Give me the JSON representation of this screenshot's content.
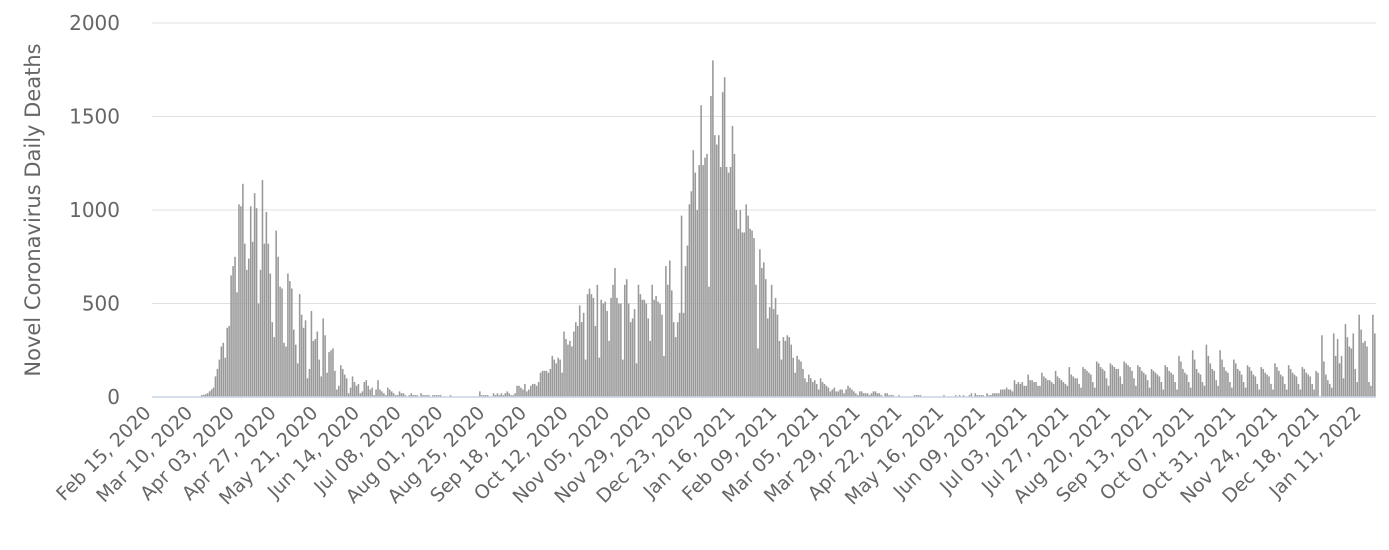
{
  "chart_data": {
    "type": "bar",
    "title": "",
    "xlabel": "",
    "ylabel": "Novel Coronavirus Daily Deaths",
    "ylim": [
      0,
      2000
    ],
    "yticks": [
      0,
      500,
      1000,
      1500,
      2000
    ],
    "ytick_labels": [
      "0",
      "500",
      "1000",
      "1500",
      "2000"
    ],
    "grid": true,
    "legend": "none",
    "bar_color": "#999999",
    "x_start": "Feb 15, 2020",
    "x_end": "Jan 30, 2022",
    "xtick_labels": [
      "Feb 15, 2020",
      "Mar 10, 2020",
      "Apr 03, 2020",
      "Apr 27, 2020",
      "May 21, 2020",
      "Jun 14, 2020",
      "Jul 08, 2020",
      "Aug 01, 2020",
      "Aug 25, 2020",
      "Sep 18, 2020",
      "Oct 12, 2020",
      "Nov 05, 2020",
      "Nov 29, 2020",
      "Dec 23, 2020",
      "Jan 16, 2021",
      "Feb 09, 2021",
      "Mar 05, 2021",
      "Mar 29, 2021",
      "Apr 22, 2021",
      "May 16, 2021",
      "Jun 09, 2021",
      "Jul 03, 2021",
      "Jul 27, 2021",
      "Aug 20, 2021",
      "Sep 13, 2021",
      "Oct 07, 2021",
      "Oct 31, 2021",
      "Nov 24, 2021",
      "Dec 18, 2021",
      "Jan 11, 2022"
    ],
    "series": [
      {
        "name": "",
        "values": [
          0,
          0,
          0,
          0,
          0,
          0,
          0,
          0,
          0,
          0,
          0,
          0,
          0,
          0,
          0,
          0,
          0,
          0,
          0,
          0,
          0,
          0,
          0,
          0,
          0,
          10,
          12,
          15,
          20,
          30,
          40,
          50,
          110,
          150,
          200,
          270,
          290,
          210,
          370,
          380,
          650,
          700,
          750,
          560,
          1030,
          1020,
          1140,
          820,
          680,
          740,
          1020,
          830,
          1090,
          1010,
          500,
          680,
          1160,
          820,
          990,
          820,
          660,
          400,
          320,
          890,
          750,
          590,
          580,
          290,
          270,
          660,
          620,
          580,
          360,
          280,
          180,
          550,
          440,
          370,
          410,
          100,
          150,
          460,
          300,
          310,
          350,
          200,
          110,
          420,
          330,
          130,
          240,
          250,
          260,
          140,
          40,
          60,
          170,
          150,
          120,
          100,
          20,
          50,
          110,
          80,
          60,
          70,
          20,
          30,
          80,
          90,
          60,
          40,
          50,
          10,
          40,
          90,
          40,
          30,
          20,
          10,
          50,
          40,
          30,
          20,
          10,
          10,
          30,
          20,
          20,
          10,
          0,
          10,
          20,
          10,
          10,
          10,
          0,
          20,
          10,
          10,
          10,
          10,
          0,
          10,
          10,
          10,
          10,
          10,
          0,
          0,
          0,
          0,
          10,
          0,
          0,
          0,
          0,
          0,
          0,
          0,
          0,
          0,
          0,
          0,
          0,
          0,
          0,
          30,
          10,
          10,
          10,
          10,
          0,
          0,
          20,
          10,
          20,
          10,
          20,
          10,
          20,
          30,
          20,
          10,
          10,
          20,
          60,
          60,
          50,
          40,
          70,
          30,
          40,
          60,
          70,
          70,
          60,
          80,
          130,
          140,
          140,
          140,
          130,
          150,
          220,
          200,
          180,
          210,
          200,
          130,
          350,
          310,
          280,
          300,
          270,
          350,
          400,
          380,
          490,
          400,
          450,
          200,
          550,
          580,
          550,
          530,
          380,
          600,
          210,
          520,
          500,
          510,
          460,
          300,
          530,
          600,
          690,
          530,
          500,
          500,
          200,
          600,
          630,
          500,
          400,
          420,
          470,
          180,
          600,
          550,
          520,
          520,
          500,
          420,
          300,
          600,
          520,
          540,
          510,
          500,
          440,
          220,
          700,
          600,
          730,
          570,
          400,
          320,
          400,
          450,
          970,
          450,
          700,
          810,
          1030,
          1100,
          1320,
          1200,
          1000,
          1240,
          1560,
          1240,
          1280,
          1300,
          590,
          1610,
          1800,
          1400,
          1350,
          1400,
          1230,
          1630,
          1710,
          1230,
          1200,
          1230,
          1450,
          1300,
          1000,
          900,
          1000,
          880,
          880,
          1030,
          970,
          900,
          890,
          850,
          600,
          260,
          790,
          690,
          720,
          630,
          420,
          480,
          600,
          470,
          530,
          440,
          300,
          200,
          320,
          300,
          330,
          320,
          280,
          210,
          130,
          220,
          200,
          190,
          150,
          100,
          80,
          120,
          100,
          80,
          90,
          70,
          40,
          100,
          80,
          70,
          60,
          50,
          30,
          40,
          50,
          30,
          30,
          40,
          40,
          20,
          40,
          60,
          50,
          40,
          30,
          20,
          10,
          30,
          30,
          20,
          20,
          20,
          10,
          20,
          30,
          30,
          20,
          20,
          10,
          0,
          20,
          20,
          10,
          10,
          10,
          0,
          0,
          10,
          0,
          0,
          0,
          0,
          0,
          0,
          0,
          10,
          10,
          10,
          10,
          0,
          0,
          0,
          0,
          0,
          0,
          0,
          0,
          0,
          0,
          0,
          10,
          0,
          0,
          0,
          0,
          0,
          10,
          0,
          10,
          0,
          10,
          0,
          0,
          10,
          20,
          0,
          20,
          10,
          10,
          10,
          10,
          0,
          20,
          10,
          10,
          20,
          20,
          20,
          20,
          40,
          40,
          40,
          50,
          40,
          40,
          30,
          90,
          70,
          80,
          70,
          80,
          60,
          60,
          120,
          90,
          90,
          80,
          80,
          60,
          60,
          130,
          110,
          100,
          90,
          90,
          80,
          70,
          140,
          110,
          100,
          90,
          80,
          70,
          60,
          160,
          120,
          110,
          100,
          100,
          70,
          50,
          160,
          150,
          140,
          130,
          120,
          80,
          50,
          190,
          180,
          160,
          150,
          140,
          100,
          60,
          180,
          170,
          160,
          150,
          150,
          110,
          70,
          190,
          180,
          170,
          160,
          140,
          100,
          60,
          170,
          160,
          140,
          130,
          120,
          90,
          50,
          150,
          140,
          130,
          120,
          110,
          80,
          40,
          170,
          160,
          140,
          130,
          120,
          80,
          40,
          220,
          190,
          150,
          130,
          120,
          80,
          50,
          250,
          200,
          150,
          130,
          120,
          80,
          60,
          280,
          220,
          180,
          150,
          140,
          90,
          60,
          250,
          200,
          160,
          140,
          130,
          80,
          50,
          200,
          180,
          150,
          140,
          120,
          80,
          50,
          170,
          160,
          140,
          120,
          110,
          70,
          40,
          160,
          150,
          130,
          120,
          110,
          70,
          40,
          180,
          160,
          140,
          120,
          110,
          70,
          40,
          170,
          150,
          130,
          120,
          110,
          70,
          40,
          160,
          150,
          130,
          120,
          110,
          70,
          40,
          140,
          130,
          0,
          330,
          190,
          120,
          90,
          70,
          50,
          340,
          220,
          310,
          180,
          220,
          100,
          390,
          320,
          270,
          260,
          340,
          150,
          80,
          440,
          360,
          290,
          300,
          270,
          80,
          60,
          440,
          340
        ]
      }
    ]
  }
}
